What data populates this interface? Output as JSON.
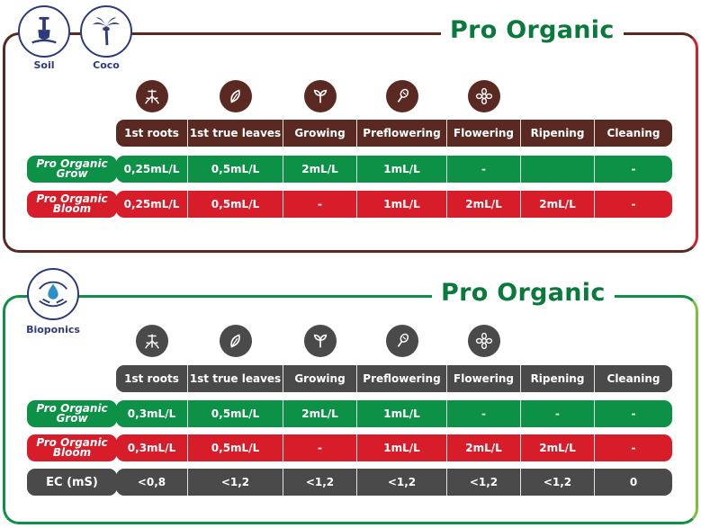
{
  "colors": {
    "brown": "#5a2a22",
    "green": "#0d9146",
    "red": "#d71c2a",
    "gray": "#4a4a4a",
    "dark_green_text": "#0a7a3c",
    "navy": "#2d3a7c",
    "lime": "#7cbf3a"
  },
  "section1": {
    "brand": "Pro Organic",
    "media": [
      {
        "label": "Soil",
        "icon": "shovel-icon"
      },
      {
        "label": "Coco",
        "icon": "palm-tree-icon"
      }
    ],
    "stage_icons": [
      "roots-icon",
      "leaf-icon",
      "sprout-icon",
      "preflower-icon",
      "flower-icon"
    ],
    "headers": [
      "1st roots",
      "1st true leaves",
      "Growing",
      "Preflowering",
      "Flowering",
      "Ripening",
      "Cleaning"
    ],
    "rows": [
      {
        "label_line1": "Pro Organic",
        "label_line2": "Grow",
        "values": [
          "0,25mL/L",
          "0,5mL/L",
          "2mL/L",
          "1mL/L",
          "-",
          "",
          "-"
        ]
      },
      {
        "label_line1": "Pro Organic",
        "label_line2": "Bloom",
        "values": [
          "0,25mL/L",
          "0,5mL/L",
          "-",
          "1mL/L",
          "2mL/L",
          "2mL/L",
          "-"
        ]
      }
    ]
  },
  "section2": {
    "brand": "Pro Organic",
    "media": [
      {
        "label": "Bioponics",
        "icon": "water-hands-icon"
      }
    ],
    "stage_icons": [
      "roots-icon",
      "leaf-icon",
      "sprout-icon",
      "preflower-icon",
      "flower-icon"
    ],
    "headers": [
      "1st roots",
      "1st true leaves",
      "Growing",
      "Preflowering",
      "Flowering",
      "Ripening",
      "Cleaning"
    ],
    "rows": [
      {
        "label_line1": "Pro Organic",
        "label_line2": "Grow",
        "values": [
          "0,3mL/L",
          "0,5mL/L",
          "2mL/L",
          "1mL/L",
          "-",
          "-",
          "-"
        ]
      },
      {
        "label_line1": "Pro Organic",
        "label_line2": "Bloom",
        "values": [
          "0,3mL/L",
          "0,5mL/L",
          "-",
          "1mL/L",
          "2mL/L",
          "2mL/L",
          "-"
        ]
      }
    ],
    "ec_row": {
      "label": "EC (mS)",
      "values": [
        "<0,8",
        "<1,2",
        "<1,2",
        "<1,2",
        "<1,2",
        "<1,2",
        "0"
      ]
    }
  }
}
